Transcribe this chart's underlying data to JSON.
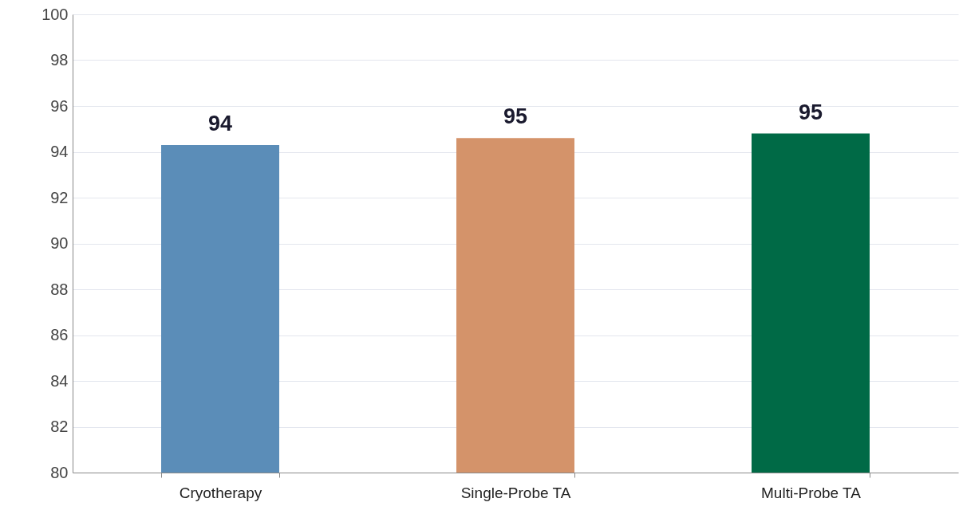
{
  "chart_data": {
    "type": "bar",
    "categories": [
      "Cryotherapy",
      "Single-Probe TA",
      "Multi-Probe TA"
    ],
    "values": [
      94.3,
      94.6,
      94.8
    ],
    "colors": [
      "#5b8db8",
      "#d4936a",
      "#006a46"
    ],
    "value_labels": [
      "94",
      "95",
      "95"
    ],
    "ylim": [
      80,
      100
    ],
    "yticks": [
      80,
      82,
      84,
      86,
      88,
      90,
      92,
      94,
      96,
      98,
      100
    ],
    "grid": "y"
  }
}
